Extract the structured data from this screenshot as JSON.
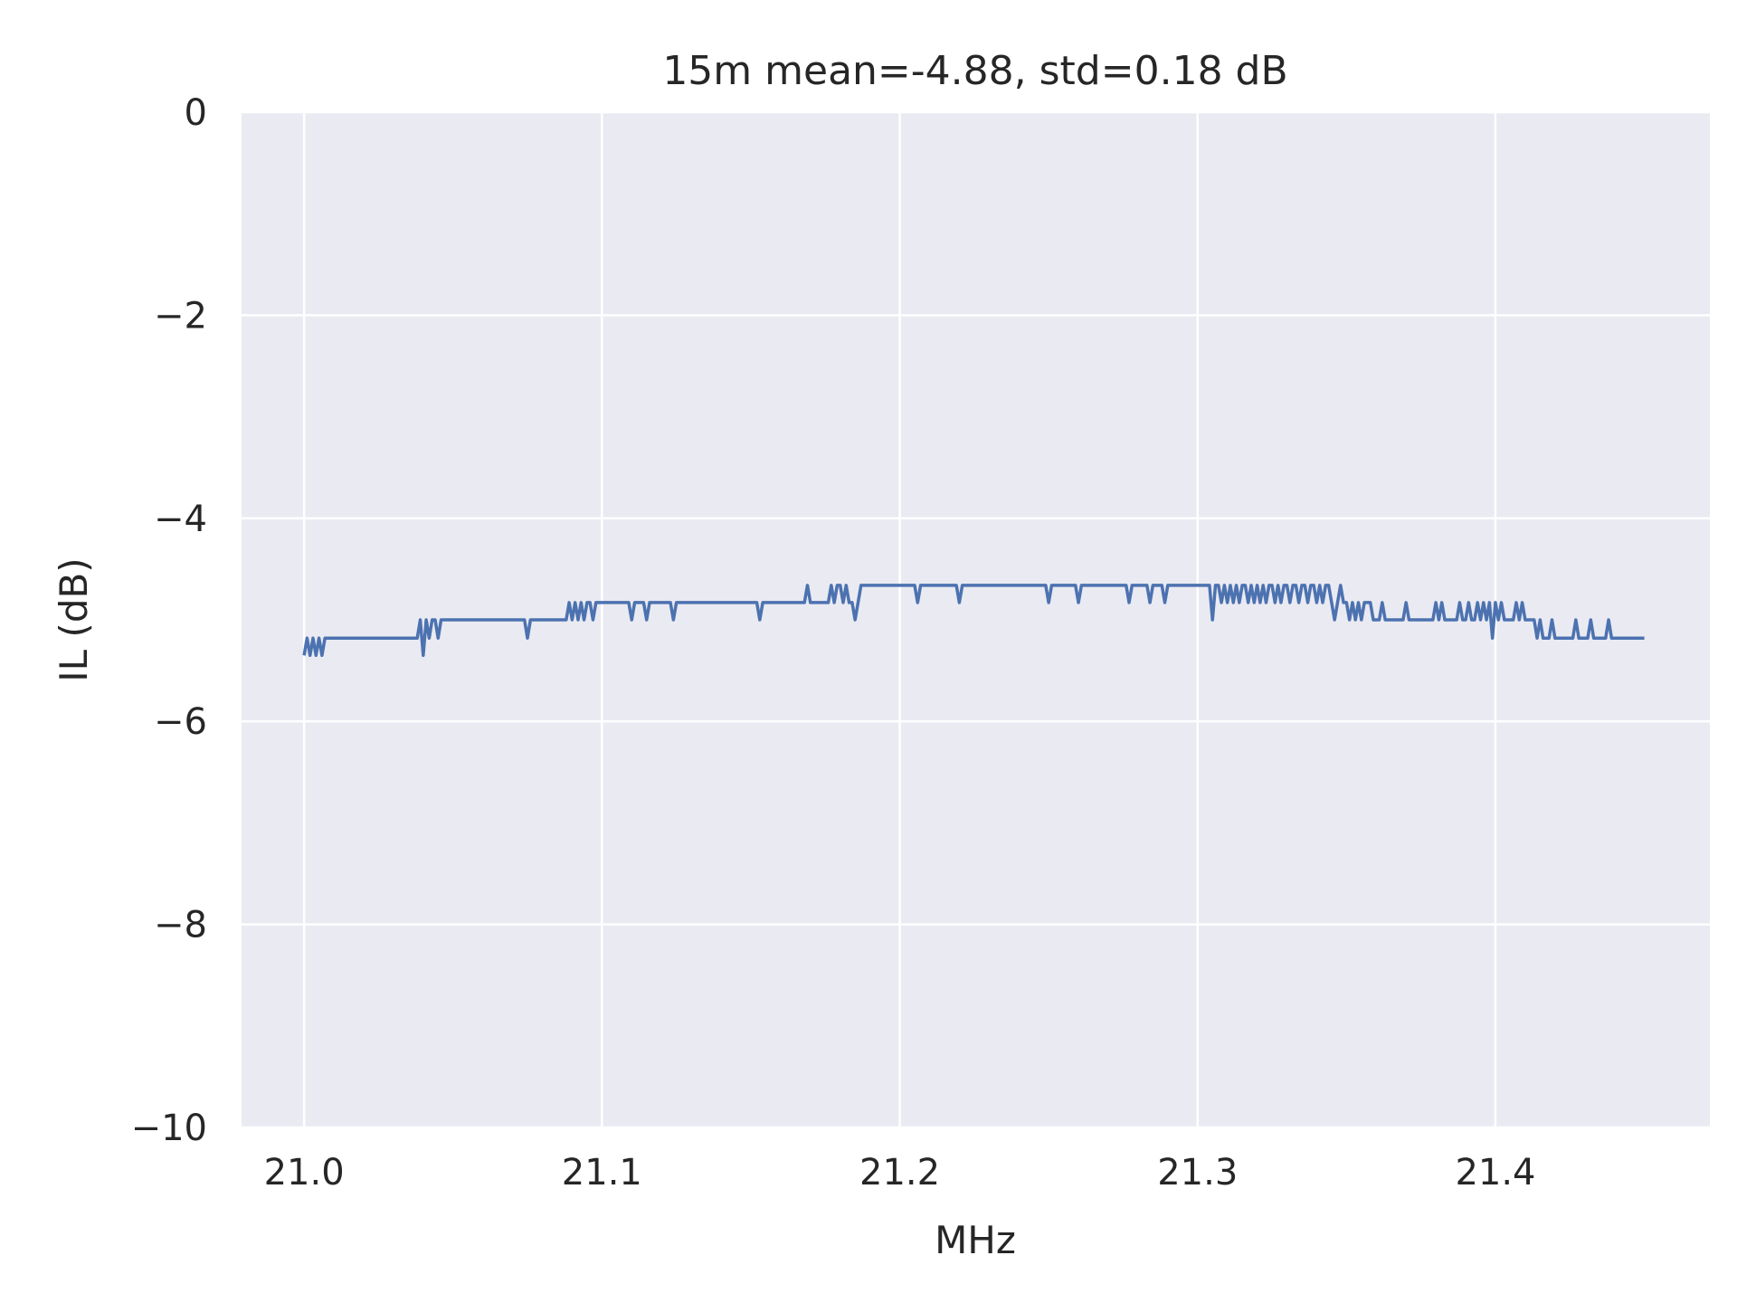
{
  "chart_data": {
    "type": "line",
    "title": "15m mean=-4.88, std=0.18 dB",
    "xlabel": "MHz",
    "ylabel": "IL (dB)",
    "xlim": [
      20.979,
      21.472
    ],
    "ylim": [
      -10,
      0
    ],
    "x_ticks": [
      21.0,
      21.1,
      21.2,
      21.3,
      21.4
    ],
    "x_tick_labels": [
      "21.0",
      "21.1",
      "21.2",
      "21.3",
      "21.4"
    ],
    "y_ticks": [
      0,
      -2,
      -4,
      -6,
      -8,
      -10
    ],
    "y_tick_labels": [
      "0",
      "−2",
      "−4",
      "−6",
      "−8",
      "−10"
    ],
    "grid": true,
    "background_color": "#eaeaf2",
    "series": [
      {
        "color": "#4c72b0",
        "x": [
          21.0,
          21.001,
          21.002,
          21.003,
          21.004,
          21.005,
          21.006,
          21.007,
          21.038,
          21.039,
          21.04,
          21.041,
          21.042,
          21.043,
          21.044,
          21.045,
          21.046,
          21.047,
          21.048,
          21.074,
          21.075,
          21.076,
          21.088,
          21.089,
          21.09,
          21.091,
          21.092,
          21.093,
          21.094,
          21.095,
          21.096,
          21.097,
          21.098,
          21.099,
          21.1,
          21.109,
          21.11,
          21.111,
          21.114,
          21.115,
          21.116,
          21.123,
          21.124,
          21.125,
          21.152,
          21.153,
          21.154,
          21.168,
          21.169,
          21.17,
          21.171,
          21.176,
          21.177,
          21.178,
          21.179,
          21.18,
          21.181,
          21.182,
          21.183,
          21.184,
          21.185,
          21.186,
          21.187,
          21.205,
          21.206,
          21.207,
          21.219,
          21.22,
          21.221,
          21.249,
          21.25,
          21.251,
          21.259,
          21.26,
          21.261,
          21.276,
          21.277,
          21.278,
          21.283,
          21.284,
          21.285,
          21.288,
          21.289,
          21.29,
          21.304,
          21.305,
          21.306,
          21.307,
          21.308,
          21.309,
          21.31,
          21.311,
          21.312,
          21.313,
          21.314,
          21.315,
          21.316,
          21.317,
          21.318,
          21.319,
          21.32,
          21.321,
          21.322,
          21.323,
          21.324,
          21.325,
          21.326,
          21.327,
          21.328,
          21.329,
          21.33,
          21.331,
          21.332,
          21.333,
          21.334,
          21.335,
          21.336,
          21.337,
          21.338,
          21.339,
          21.34,
          21.341,
          21.342,
          21.343,
          21.344,
          21.345,
          21.346,
          21.347,
          21.348,
          21.349,
          21.35,
          21.351,
          21.352,
          21.353,
          21.354,
          21.355,
          21.356,
          21.357,
          21.358,
          21.359,
          21.36,
          21.361,
          21.362,
          21.363,
          21.364,
          21.365,
          21.366,
          21.367,
          21.368,
          21.369,
          21.37,
          21.371,
          21.372,
          21.373,
          21.374,
          21.375,
          21.376,
          21.377,
          21.378,
          21.379,
          21.38,
          21.381,
          21.382,
          21.383,
          21.384,
          21.385,
          21.386,
          21.387,
          21.388,
          21.389,
          21.39,
          21.391,
          21.392,
          21.393,
          21.394,
          21.395,
          21.396,
          21.397,
          21.398,
          21.399,
          21.4,
          21.401,
          21.402,
          21.403,
          21.404,
          21.405,
          21.406,
          21.407,
          21.408,
          21.409,
          21.41,
          21.411,
          21.412,
          21.413,
          21.414,
          21.415,
          21.416,
          21.417,
          21.418,
          21.419,
          21.42,
          21.421,
          21.422,
          21.423,
          21.424,
          21.425,
          21.426,
          21.427,
          21.428,
          21.429,
          21.43,
          21.431,
          21.432,
          21.433,
          21.434,
          21.435,
          21.436,
          21.437,
          21.438,
          21.439,
          21.44,
          21.45
        ],
        "y": [
          -5.35,
          -5.18,
          -5.35,
          -5.18,
          -5.35,
          -5.18,
          -5.35,
          -5.18,
          -5.18,
          -5.0,
          -5.35,
          -5.0,
          -5.18,
          -5.0,
          -5.0,
          -5.18,
          -5.0,
          -5.0,
          -5.0,
          -5.0,
          -5.18,
          -5.0,
          -5.0,
          -4.83,
          -5.0,
          -4.83,
          -5.0,
          -4.83,
          -5.0,
          -4.83,
          -4.83,
          -5.0,
          -4.83,
          -4.83,
          -4.83,
          -4.83,
          -5.0,
          -4.83,
          -4.83,
          -5.0,
          -4.83,
          -4.83,
          -5.0,
          -4.83,
          -4.83,
          -5.0,
          -4.83,
          -4.83,
          -4.66,
          -4.83,
          -4.83,
          -4.83,
          -4.66,
          -4.83,
          -4.66,
          -4.66,
          -4.83,
          -4.66,
          -4.83,
          -4.83,
          -5.0,
          -4.83,
          -4.66,
          -4.66,
          -4.83,
          -4.66,
          -4.66,
          -4.83,
          -4.66,
          -4.66,
          -4.83,
          -4.66,
          -4.66,
          -4.83,
          -4.66,
          -4.66,
          -4.83,
          -4.66,
          -4.66,
          -4.83,
          -4.66,
          -4.66,
          -4.83,
          -4.66,
          -4.66,
          -5.0,
          -4.66,
          -4.66,
          -4.83,
          -4.66,
          -4.83,
          -4.66,
          -4.83,
          -4.66,
          -4.83,
          -4.66,
          -4.66,
          -4.83,
          -4.66,
          -4.83,
          -4.66,
          -4.83,
          -4.66,
          -4.83,
          -4.66,
          -4.66,
          -4.83,
          -4.66,
          -4.83,
          -4.66,
          -4.66,
          -4.83,
          -4.66,
          -4.66,
          -4.83,
          -4.66,
          -4.66,
          -4.83,
          -4.66,
          -4.66,
          -4.83,
          -4.66,
          -4.83,
          -4.66,
          -4.66,
          -4.83,
          -5.0,
          -4.83,
          -4.66,
          -4.83,
          -4.83,
          -5.0,
          -4.83,
          -5.0,
          -4.83,
          -5.0,
          -4.83,
          -4.83,
          -4.83,
          -5.0,
          -5.0,
          -5.0,
          -4.83,
          -5.0,
          -5.0,
          -5.0,
          -5.0,
          -5.0,
          -5.0,
          -5.0,
          -4.83,
          -5.0,
          -5.0,
          -5.0,
          -5.0,
          -5.0,
          -5.0,
          -5.0,
          -5.0,
          -5.0,
          -4.83,
          -5.0,
          -4.83,
          -5.0,
          -5.0,
          -5.0,
          -5.0,
          -5.0,
          -4.83,
          -5.0,
          -5.0,
          -4.83,
          -5.0,
          -5.0,
          -4.83,
          -5.0,
          -4.83,
          -5.0,
          -4.83,
          -5.18,
          -4.83,
          -5.0,
          -4.83,
          -5.0,
          -5.0,
          -5.0,
          -5.0,
          -4.83,
          -5.0,
          -4.83,
          -5.0,
          -5.0,
          -5.0,
          -5.0,
          -5.18,
          -5.0,
          -5.18,
          -5.18,
          -5.18,
          -5.0,
          -5.18,
          -5.18,
          -5.18,
          -5.18,
          -5.18,
          -5.18,
          -5.18,
          -5.0,
          -5.18,
          -5.18,
          -5.18,
          -5.18,
          -5.0,
          -5.18,
          -5.18,
          -5.18,
          -5.18,
          -5.18,
          -5.0,
          -5.18,
          -5.18,
          -5.18
        ]
      }
    ]
  }
}
